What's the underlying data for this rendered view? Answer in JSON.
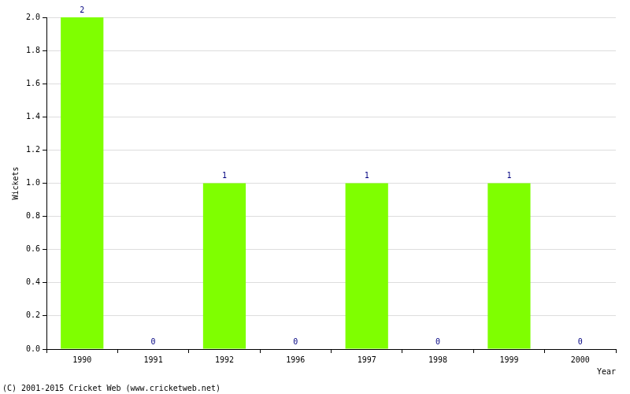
{
  "chart_data": {
    "type": "bar",
    "categories": [
      "1990",
      "1991",
      "1992",
      "1996",
      "1997",
      "1998",
      "1999",
      "2000"
    ],
    "values": [
      2,
      0,
      1,
      0,
      1,
      0,
      1,
      0
    ],
    "color": "#7fff00",
    "ylim": [
      0,
      2
    ],
    "yticks": [
      {
        "value": 0,
        "label": "0.0"
      },
      0.2,
      0.4,
      0.6,
      0.8,
      {
        "value": 1,
        "label": "1.0"
      },
      1.2,
      1.4,
      1.6,
      1.8,
      {
        "value": 2,
        "label": "2.0"
      }
    ],
    "grid": true,
    "data_labels": true,
    "x_label": "Year",
    "y_label": "Wickets",
    "annotations": [
      "(C) 2001-2015 Cricket Web (www.cricketweb.net)"
    ]
  }
}
